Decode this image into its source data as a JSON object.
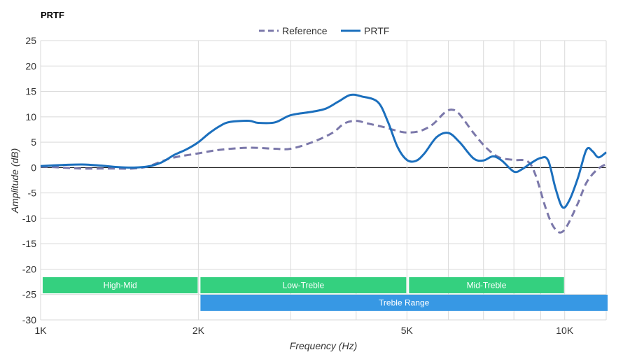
{
  "chart_data": {
    "type": "line",
    "title": "PRTF",
    "xlabel": "Frequency (Hz)",
    "ylabel": "Amplitude (dB)",
    "x_scale": "log",
    "xlim": [
      1000,
      12000
    ],
    "ylim": [
      -30,
      25
    ],
    "y_ticks": [
      25,
      20,
      15,
      10,
      5,
      0,
      -5,
      -10,
      -15,
      -20,
      -25,
      -30
    ],
    "x_ticks": [
      {
        "value": 1000,
        "label": "1K"
      },
      {
        "value": 2000,
        "label": "2K"
      },
      {
        "value": 5000,
        "label": "5K"
      },
      {
        "value": 10000,
        "label": "10K"
      }
    ],
    "x_gridlines": [
      1000,
      2000,
      3000,
      4000,
      5000,
      6000,
      7000,
      8000,
      9000,
      10000,
      12000
    ],
    "grid": true,
    "legend_position": "top-center",
    "series": [
      {
        "name": "Reference",
        "style": "dashed",
        "color": "#7b78aa",
        "points": [
          [
            1000,
            0.2
          ],
          [
            1100,
            0.0
          ],
          [
            1200,
            -0.2
          ],
          [
            1300,
            -0.2
          ],
          [
            1400,
            -0.2
          ],
          [
            1500,
            -0.2
          ],
          [
            1600,
            0.2
          ],
          [
            1700,
            1.2
          ],
          [
            1800,
            2.0
          ],
          [
            2000,
            2.8
          ],
          [
            2200,
            3.5
          ],
          [
            2500,
            3.9
          ],
          [
            2800,
            3.7
          ],
          [
            3000,
            3.7
          ],
          [
            3300,
            5.0
          ],
          [
            3600,
            6.8
          ],
          [
            3800,
            8.7
          ],
          [
            4000,
            9.2
          ],
          [
            4200,
            8.7
          ],
          [
            4500,
            8.0
          ],
          [
            4800,
            7.2
          ],
          [
            5000,
            6.9
          ],
          [
            5300,
            7.2
          ],
          [
            5600,
            8.5
          ],
          [
            5900,
            10.8
          ],
          [
            6100,
            11.4
          ],
          [
            6300,
            10.5
          ],
          [
            6700,
            6.8
          ],
          [
            7100,
            3.8
          ],
          [
            7500,
            2.0
          ],
          [
            8000,
            1.5
          ],
          [
            8500,
            1.2
          ],
          [
            8800,
            -1.5
          ],
          [
            9200,
            -8.0
          ],
          [
            9500,
            -11.5
          ],
          [
            9800,
            -12.8
          ],
          [
            10100,
            -11.5
          ],
          [
            10600,
            -7.0
          ],
          [
            11000,
            -3.0
          ],
          [
            11500,
            -0.5
          ],
          [
            12000,
            0.7
          ]
        ]
      },
      {
        "name": "PRTF",
        "style": "solid",
        "color": "#1b6fbd",
        "points": [
          [
            1000,
            0.3
          ],
          [
            1100,
            0.5
          ],
          [
            1200,
            0.6
          ],
          [
            1300,
            0.4
          ],
          [
            1400,
            0.1
          ],
          [
            1500,
            0.0
          ],
          [
            1600,
            0.2
          ],
          [
            1700,
            1.0
          ],
          [
            1800,
            2.5
          ],
          [
            1900,
            3.6
          ],
          [
            2000,
            5.0
          ],
          [
            2100,
            6.8
          ],
          [
            2200,
            8.2
          ],
          [
            2300,
            9.0
          ],
          [
            2500,
            9.2
          ],
          [
            2600,
            8.8
          ],
          [
            2800,
            8.9
          ],
          [
            3000,
            10.3
          ],
          [
            3300,
            11.0
          ],
          [
            3500,
            11.6
          ],
          [
            3700,
            13.0
          ],
          [
            3900,
            14.3
          ],
          [
            4100,
            14.0
          ],
          [
            4400,
            12.9
          ],
          [
            4600,
            9.0
          ],
          [
            4800,
            4.0
          ],
          [
            5000,
            1.5
          ],
          [
            5200,
            1.3
          ],
          [
            5400,
            2.8
          ],
          [
            5700,
            6.0
          ],
          [
            6000,
            6.8
          ],
          [
            6300,
            5.0
          ],
          [
            6700,
            1.8
          ],
          [
            7000,
            1.4
          ],
          [
            7300,
            2.2
          ],
          [
            7600,
            1.3
          ],
          [
            8000,
            -0.8
          ],
          [
            8300,
            -0.3
          ],
          [
            8600,
            0.8
          ],
          [
            9000,
            1.9
          ],
          [
            9300,
            1.4
          ],
          [
            9600,
            -4.0
          ],
          [
            9900,
            -7.8
          ],
          [
            10200,
            -6.5
          ],
          [
            10600,
            -2.0
          ],
          [
            11000,
            3.5
          ],
          [
            11300,
            3.2
          ],
          [
            11600,
            2.0
          ],
          [
            12000,
            3.0
          ]
        ]
      }
    ],
    "bands": [
      {
        "label": "High-Mid",
        "start": 1000,
        "end": 2000,
        "color": "#34d07f",
        "row": 0
      },
      {
        "label": "Low-Treble",
        "start": 2000,
        "end": 5000,
        "color": "#34d07f",
        "row": 0
      },
      {
        "label": "Mid-Treble",
        "start": 5000,
        "end": 10000,
        "color": "#34d07f",
        "row": 0
      },
      {
        "label": "Treble Range",
        "start": 2000,
        "end": 12000,
        "color": "#3798e4",
        "row": 1
      }
    ]
  }
}
